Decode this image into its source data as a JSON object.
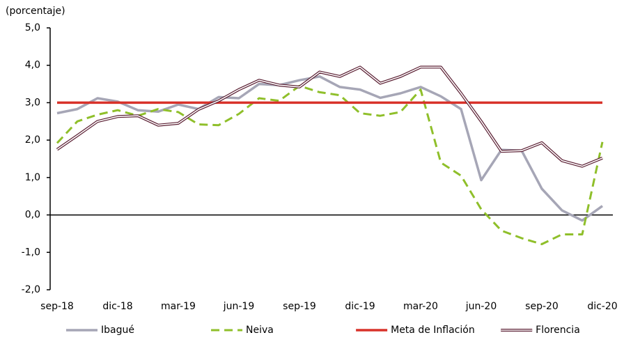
{
  "chart_data": {
    "type": "line",
    "y_label": "(porcentaje)",
    "categories": [
      "sep-18",
      null,
      null,
      "dic-18",
      null,
      null,
      "mar-19",
      null,
      null,
      "jun-19",
      null,
      null,
      "sep-19",
      null,
      null,
      "dic-19",
      null,
      null,
      "mar-20",
      null,
      null,
      "jun-20",
      null,
      null,
      "sep-20",
      null,
      null,
      "dic-20"
    ],
    "series": [
      {
        "name": "Ibagué",
        "color": "#a6a6b6",
        "linestyle": "solid",
        "values": [
          2.72,
          2.83,
          3.12,
          3.03,
          2.8,
          2.76,
          2.95,
          2.83,
          3.15,
          3.12,
          3.5,
          3.47,
          3.6,
          3.7,
          3.42,
          3.35,
          3.13,
          3.25,
          3.42,
          3.17,
          2.83,
          0.93,
          1.74,
          1.72,
          0.7,
          0.12,
          -0.15,
          0.24
        ]
      },
      {
        "name": "Neiva",
        "color": "#8fbf2a",
        "linestyle": "dashed",
        "values": [
          1.92,
          2.5,
          2.68,
          2.8,
          2.65,
          2.83,
          2.75,
          2.42,
          2.4,
          2.7,
          3.12,
          3.05,
          3.45,
          3.28,
          3.2,
          2.72,
          2.65,
          2.75,
          3.35,
          1.4,
          1.05,
          0.15,
          -0.42,
          -0.62,
          -0.78,
          -0.52,
          -0.52,
          1.95
        ]
      },
      {
        "name": "Meta de Inflación",
        "color": "#d8322a",
        "linestyle": "solid",
        "values": [
          3,
          3,
          3,
          3,
          3,
          3,
          3,
          3,
          3,
          3,
          3,
          3,
          3,
          3,
          3,
          3,
          3,
          3,
          3,
          3,
          3,
          3,
          3,
          3,
          3,
          3,
          3,
          3
        ]
      },
      {
        "name": "Florencia",
        "color": "#5a1e32",
        "linestyle": "double",
        "values": [
          1.75,
          2.12,
          2.5,
          2.63,
          2.65,
          2.4,
          2.45,
          2.82,
          3.05,
          3.35,
          3.6,
          3.47,
          3.42,
          3.82,
          3.7,
          3.95,
          3.52,
          3.7,
          3.95,
          3.95,
          3.25,
          2.5,
          1.7,
          1.72,
          1.93,
          1.45,
          1.3,
          1.52
        ]
      }
    ],
    "ylim": [
      -2,
      5
    ],
    "yticks": [
      {
        "value": -2,
        "label": "-2,0"
      },
      {
        "value": -1,
        "label": "-1,0"
      },
      {
        "value": 0,
        "label": "0,0"
      },
      {
        "value": 1,
        "label": "1,0"
      },
      {
        "value": 2,
        "label": "2,0"
      },
      {
        "value": 3,
        "label": "3,0"
      },
      {
        "value": 4,
        "label": "4,0"
      },
      {
        "value": 5,
        "label": "5,0"
      }
    ],
    "grid": false,
    "legend": "bottom"
  }
}
